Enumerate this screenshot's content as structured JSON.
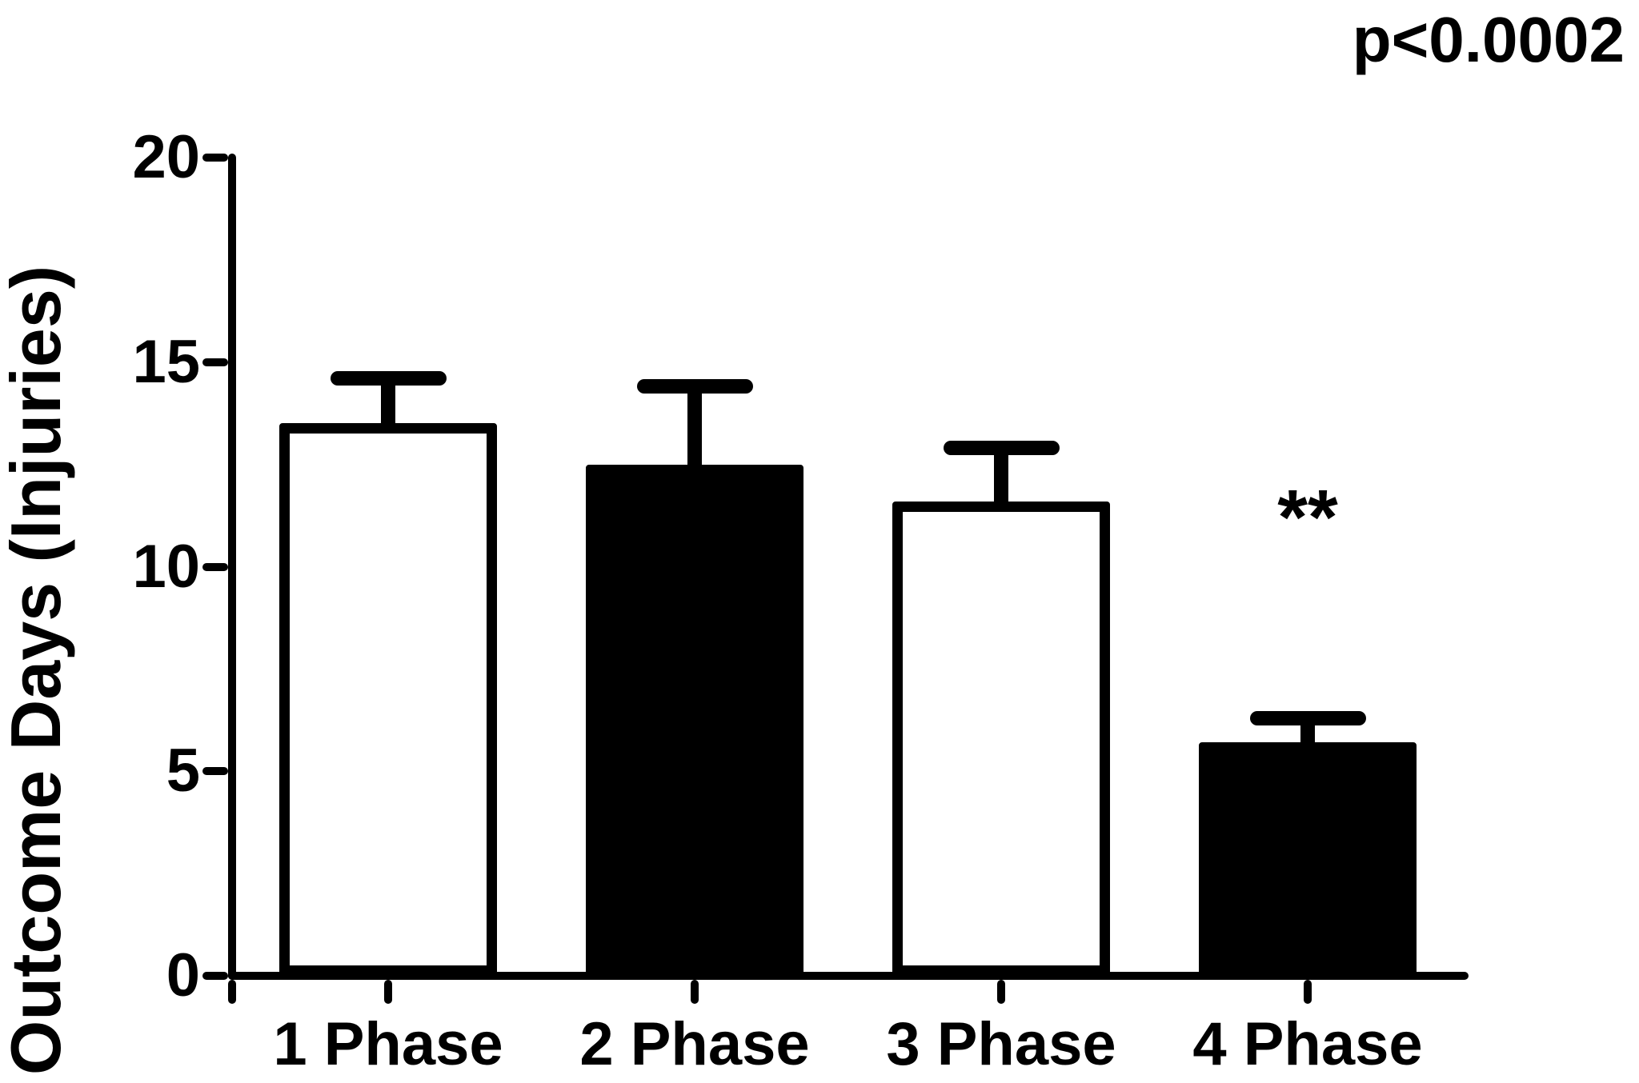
{
  "colors": {
    "foreground": "#000000",
    "background": "#ffffff"
  },
  "chart_data": {
    "type": "bar",
    "title": "",
    "xlabel": "",
    "ylabel": "Outcome Days (Injuries)",
    "categories": [
      "1 Phase",
      "2 Phase",
      "3 Phase",
      "4 Phase"
    ],
    "values": [
      13.5,
      12.5,
      11.6,
      5.7
    ],
    "errors_upper": [
      1.1,
      1.9,
      1.3,
      0.6
    ],
    "error_bar_style": "upper stem with cap",
    "bar_fill_colors": [
      "#ffffff",
      "#000000",
      "#ffffff",
      "#000000"
    ],
    "bar_edge_color": "#000000",
    "ylim": [
      0,
      20
    ],
    "yticks": [
      0,
      5,
      10,
      15,
      20
    ],
    "grid": false,
    "legend": null,
    "annotations": {
      "p_value": "p<0.0002",
      "significance": "**",
      "significance_category": "4 Phase"
    }
  }
}
